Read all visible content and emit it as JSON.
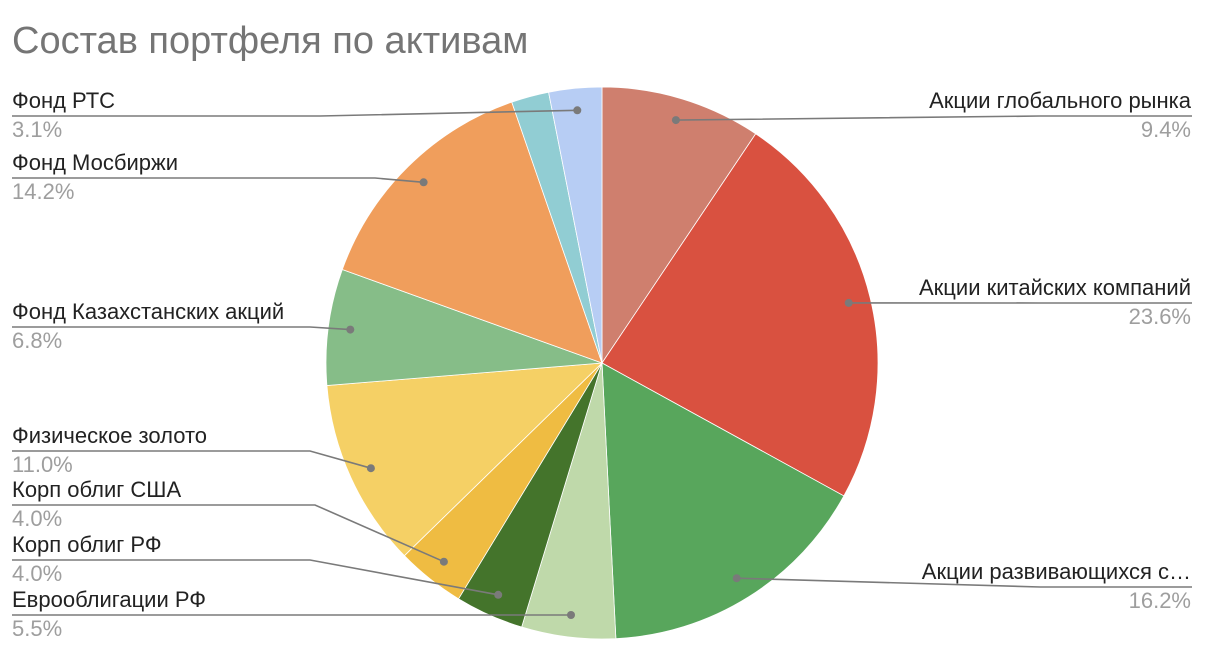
{
  "chart_data": {
    "type": "pie",
    "title": "Состав портфеля по активам",
    "slices": [
      {
        "label": "Акции глобального рынка",
        "value": 9.4,
        "pct_text": "9.4%",
        "color": "#cf7f6e"
      },
      {
        "label": "Акции китайских компаний",
        "value": 23.6,
        "pct_text": "23.6%",
        "color": "#d95140"
      },
      {
        "label": "Акции развивающихся с…",
        "value": 16.2,
        "pct_text": "16.2%",
        "color": "#58a65c"
      },
      {
        "label": "Еврооблигации РФ",
        "value": 5.5,
        "pct_text": "5.5%",
        "color": "#bfd9aa"
      },
      {
        "label": "Корп облиг РФ",
        "value": 4.0,
        "pct_text": "4.0%",
        "color": "#44742b"
      },
      {
        "label": "Корп облиг США",
        "value": 4.0,
        "pct_text": "4.0%",
        "color": "#efbc42"
      },
      {
        "label": "Физическое золото",
        "value": 11.0,
        "pct_text": "11.0%",
        "color": "#f5d065"
      },
      {
        "label": "Фонд Казахстанских акций",
        "value": 6.8,
        "pct_text": "6.8%",
        "color": "#86bd88"
      },
      {
        "label": "Фонд Мосбиржи",
        "value": 14.2,
        "pct_text": "14.2%",
        "color": "#f09e5c"
      },
      {
        "label": "",
        "value": 2.2,
        "pct_text": "",
        "color": "#91cdd3"
      },
      {
        "label": "Фонд РТС",
        "value": 3.1,
        "pct_text": "3.1%",
        "color": "#b7cdf4"
      }
    ]
  }
}
